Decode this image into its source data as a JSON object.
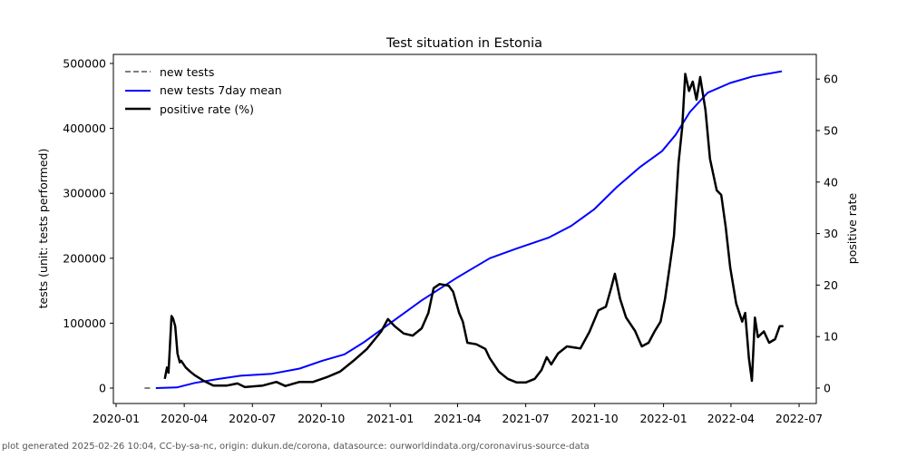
{
  "chart_data": {
    "type": "line",
    "title": "Test situation in Estonia",
    "ylabel": "tests (unit: tests performed)",
    "y2label": "positive rate",
    "ylim": [
      -25000,
      512000
    ],
    "y2lim": [
      -3,
      66
    ],
    "xlim": [
      "2019-12-20",
      "2022-07-20"
    ],
    "yticks": [
      "0",
      "100000",
      "200000",
      "300000",
      "400000",
      "500000"
    ],
    "ytick_values": [
      0,
      100000,
      200000,
      300000,
      400000,
      500000
    ],
    "y2ticks": [
      "0",
      "10",
      "20",
      "30",
      "40",
      "50",
      "60"
    ],
    "y2tick_values": [
      0,
      10,
      20,
      30,
      40,
      50,
      60
    ],
    "xticks": [
      "2020-01",
      "2020-04",
      "2020-07",
      "2020-10",
      "2021-01",
      "2021-04",
      "2021-07",
      "2021-10",
      "2022-01",
      "2022-04",
      "2022-07"
    ],
    "xtick_values": [
      "2020-01-01",
      "2020-04-01",
      "2020-07-01",
      "2020-10-01",
      "2021-01-01",
      "2021-04-01",
      "2021-07-01",
      "2021-10-01",
      "2022-01-01",
      "2022-04-01",
      "2022-07-01"
    ],
    "legend_position": "top-left",
    "series": [
      {
        "name": "new tests",
        "axis": "left",
        "color": "#808080",
        "style": "dashed",
        "x": [
          "2020-02-08",
          "2020-02-18"
        ],
        "y": [
          0,
          0
        ]
      },
      {
        "name": "new tests 7day mean",
        "axis": "left",
        "color": "#0000ff",
        "style": "solid",
        "x": [
          "2020-02-23",
          "2020-03-22",
          "2020-04-15",
          "2020-05-16",
          "2020-06-15",
          "2020-07-27",
          "2020-09-02",
          "2020-10-02",
          "2020-11-01",
          "2020-11-26",
          "2021-01-01",
          "2021-02-12",
          "2021-03-31",
          "2021-05-14",
          "2021-06-19",
          "2021-08-01",
          "2021-08-31",
          "2021-09-30",
          "2021-10-31",
          "2021-11-30",
          "2021-12-30",
          "2022-01-17",
          "2022-02-05",
          "2022-03-01",
          "2022-03-31",
          "2022-04-30",
          "2022-06-08"
        ],
        "y": [
          0,
          1000,
          8000,
          14000,
          19000,
          22000,
          30000,
          42000,
          52000,
          70000,
          100000,
          135000,
          170000,
          200000,
          215000,
          232000,
          250000,
          275000,
          310000,
          340000,
          365000,
          390000,
          425000,
          455000,
          470000,
          480000,
          488000
        ]
      },
      {
        "name": "positive rate (%)",
        "axis": "right",
        "color": "#000000",
        "style": "solid",
        "x": [
          "2020-03-06",
          "2020-03-09",
          "2020-03-11",
          "2020-03-15",
          "2020-03-17",
          "2020-03-20",
          "2020-03-23",
          "2020-03-26",
          "2020-03-28",
          "2020-04-03",
          "2020-04-09",
          "2020-04-15",
          "2020-04-27",
          "2020-05-10",
          "2020-05-28",
          "2020-06-11",
          "2020-06-21",
          "2020-07-15",
          "2020-08-02",
          "2020-08-14",
          "2020-09-02",
          "2020-09-20",
          "2020-10-08",
          "2020-10-26",
          "2020-11-13",
          "2020-12-01",
          "2020-12-20",
          "2020-12-29",
          "2021-01-07",
          "2021-01-19",
          "2021-01-31",
          "2021-02-12",
          "2021-02-21",
          "2021-02-28",
          "2021-03-08",
          "2021-03-20",
          "2021-03-26",
          "2021-04-03",
          "2021-04-08",
          "2021-04-14",
          "2021-04-26",
          "2021-05-08",
          "2021-05-14",
          "2021-05-26",
          "2021-06-07",
          "2021-06-19",
          "2021-07-01",
          "2021-07-13",
          "2021-07-22",
          "2021-07-29",
          "2021-08-04",
          "2021-08-13",
          "2021-08-25",
          "2021-09-12",
          "2021-09-24",
          "2021-10-06",
          "2021-10-16",
          "2021-10-23",
          "2021-10-28",
          "2021-11-04",
          "2021-11-12",
          "2021-11-24",
          "2021-12-03",
          "2021-12-12",
          "2021-12-20",
          "2021-12-28",
          "2022-01-03",
          "2022-01-09",
          "2022-01-15",
          "2022-01-21",
          "2022-01-26",
          "2022-01-30",
          "2022-02-04",
          "2022-02-09",
          "2022-02-14",
          "2022-02-19",
          "2022-02-26",
          "2022-03-04",
          "2022-03-13",
          "2022-03-19",
          "2022-03-25",
          "2022-03-31",
          "2022-04-08",
          "2022-04-16",
          "2022-04-20",
          "2022-04-25",
          "2022-04-29",
          "2022-05-03",
          "2022-05-07",
          "2022-05-15",
          "2022-05-22",
          "2022-05-30",
          "2022-06-05",
          "2022-06-10"
        ],
        "y": [
          1.8,
          4,
          3,
          14,
          13.5,
          12,
          6.7,
          5,
          5.3,
          4,
          3.2,
          2.5,
          1.4,
          0.5,
          0.5,
          0.9,
          0.2,
          0.5,
          1.2,
          0.4,
          1.2,
          1.2,
          2.1,
          3.2,
          5.3,
          7.6,
          11,
          13.4,
          12,
          10.6,
          10.2,
          11.6,
          14.6,
          19.4,
          20.2,
          19.9,
          18.7,
          14.6,
          12.9,
          8.8,
          8.5,
          7.6,
          5.8,
          3.2,
          1.8,
          1.1,
          1.1,
          1.8,
          3.5,
          6,
          4.6,
          6.7,
          8.1,
          7.7,
          10.9,
          15.1,
          15.8,
          19.4,
          22.2,
          17.3,
          13.7,
          11.1,
          8.1,
          8.8,
          11,
          12.9,
          17.3,
          23.4,
          29.6,
          43.7,
          50.7,
          61,
          57.7,
          59.5,
          56,
          60.4,
          54,
          44.5,
          38.4,
          37.5,
          31.3,
          23.4,
          16.4,
          12.9,
          14.6,
          5.8,
          1.4,
          13.7,
          9.9,
          11,
          8.8,
          9.5,
          12,
          12
        ]
      }
    ]
  },
  "footer": "plot generated 2025-02-26 10:04, CC-by-sa-nc, origin: dukun.de/corona, datasource: ourworldindata.org/coronavirus-source-data"
}
